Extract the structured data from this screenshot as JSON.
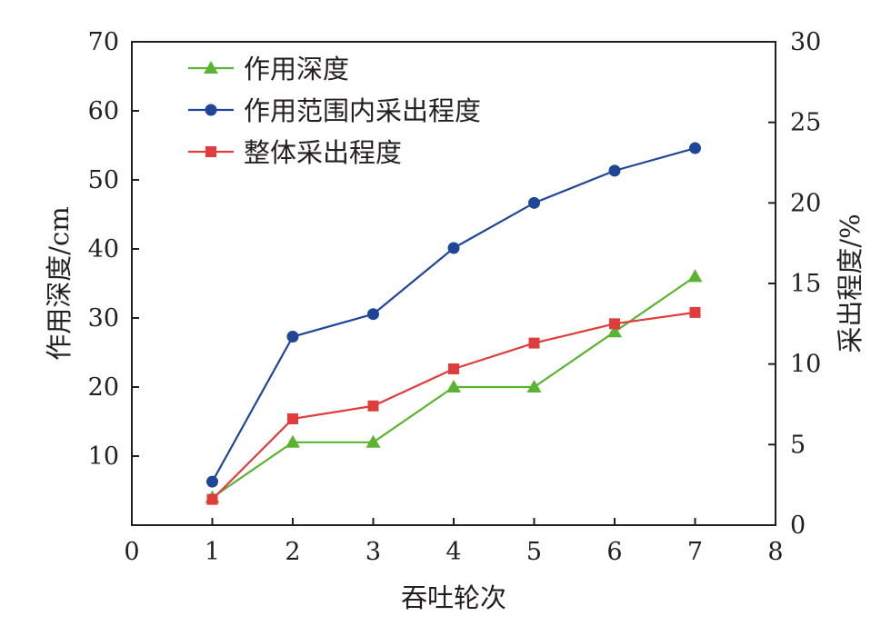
{
  "chart_data": {
    "type": "line",
    "xlabel": "吞吐轮次",
    "ylabel": "作用深度/cm",
    "y2label": "采出程度/%",
    "xlim": [
      0,
      8
    ],
    "ylim": [
      0,
      70
    ],
    "y2lim": [
      0,
      30
    ],
    "xticks": [
      "0",
      "1",
      "2",
      "3",
      "4",
      "5",
      "6",
      "7",
      "8"
    ],
    "yticks": [
      "10",
      "20",
      "30",
      "40",
      "50",
      "60",
      "70"
    ],
    "y2ticks": [
      "0",
      "5",
      "10",
      "15",
      "20",
      "25",
      "30"
    ],
    "grid": false,
    "legend_position": "top-left",
    "x": [
      1,
      2,
      3,
      4,
      5,
      6,
      7
    ],
    "series": [
      {
        "name": "作用深度",
        "axis": "left",
        "color": "#5bb431",
        "marker": "triangle",
        "values": [
          4,
          12,
          12,
          20,
          20,
          28,
          36
        ]
      },
      {
        "name": "作用范围内采出程度",
        "axis": "right",
        "color": "#1f4596",
        "marker": "circle",
        "values": [
          2.7,
          11.7,
          13.1,
          17.2,
          20.0,
          22.0,
          23.4
        ]
      },
      {
        "name": "整体采出程度",
        "axis": "right",
        "color": "#e03c3c",
        "marker": "square",
        "values": [
          1.6,
          6.6,
          7.4,
          9.7,
          11.3,
          12.5,
          13.2
        ]
      }
    ]
  }
}
